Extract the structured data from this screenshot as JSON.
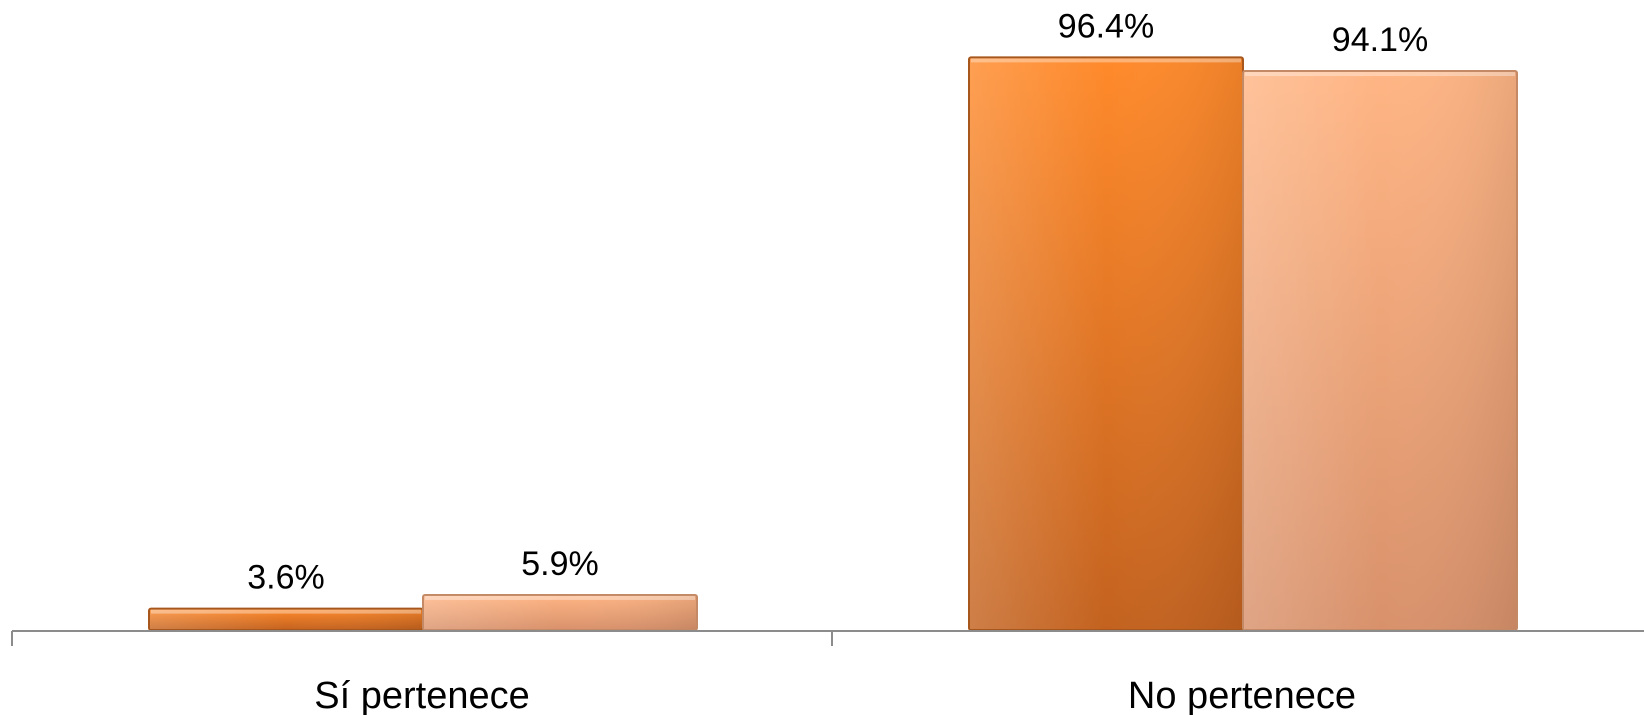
{
  "chart_data": {
    "type": "bar",
    "title": "",
    "xlabel": "",
    "ylabel": "",
    "categories": [
      "Sí pertenece",
      "No pertenece"
    ],
    "series": [
      {
        "values": [
          3.6,
          96.4
        ],
        "labels": [
          "3.6%",
          "96.4%"
        ]
      },
      {
        "values": [
          5.9,
          94.1
        ],
        "labels": [
          "5.9%",
          "94.1%"
        ]
      }
    ],
    "ylim": [
      0,
      100
    ],
    "grid": false,
    "legend": "none"
  },
  "colors": {
    "series_0_top": "#ff8a2b",
    "series_0_bottom": "#c3621f",
    "series_0_edge": "#a8571c",
    "series_1_top": "#ffb584",
    "series_1_bottom": "#d8916b",
    "series_1_edge": "#c48a66",
    "axis": "#8c8c8c"
  }
}
